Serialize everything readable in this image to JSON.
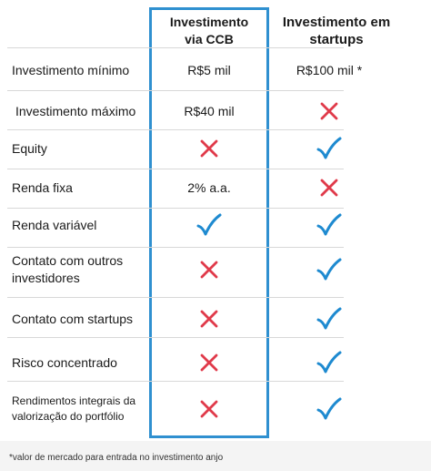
{
  "columns": {
    "ccb": "Investimento\nvia CCB",
    "startups": "Investimento em\nstartups"
  },
  "rows": [
    {
      "label": "Investimento mínimo",
      "ccb": {
        "type": "text",
        "text": "R$5 mil"
      },
      "startups": {
        "type": "text",
        "text": "R$100 mil *"
      }
    },
    {
      "label": "Investimento máximo",
      "ccb": {
        "type": "text",
        "text": "R$40 mil"
      },
      "startups": {
        "type": "cross"
      }
    },
    {
      "label": "Equity",
      "ccb": {
        "type": "cross"
      },
      "startups": {
        "type": "check"
      }
    },
    {
      "label": "Renda fixa",
      "ccb": {
        "type": "text",
        "text": "2% a.a."
      },
      "startups": {
        "type": "cross"
      }
    },
    {
      "label": "Renda variável",
      "ccb": {
        "type": "check"
      },
      "startups": {
        "type": "check"
      }
    },
    {
      "label": "Contato com outros investidores",
      "ccb": {
        "type": "cross"
      },
      "startups": {
        "type": "check"
      }
    },
    {
      "label": "Contato com startups",
      "ccb": {
        "type": "cross"
      },
      "startups": {
        "type": "check"
      }
    },
    {
      "label": "Risco concentrado",
      "ccb": {
        "type": "cross"
      },
      "startups": {
        "type": "check"
      }
    },
    {
      "label": "Rendimentos integrais da valorização do portfólio",
      "ccb": {
        "type": "cross"
      },
      "startups": {
        "type": "check"
      }
    }
  ],
  "footnote": "*valor de mercado para entrada no investimento anjo",
  "colors": {
    "highlight_border": "#2f90d0",
    "check": "#1e8ad0",
    "cross": "#e03a4a"
  },
  "icons": {
    "check": "check-icon",
    "cross": "cross-icon"
  }
}
